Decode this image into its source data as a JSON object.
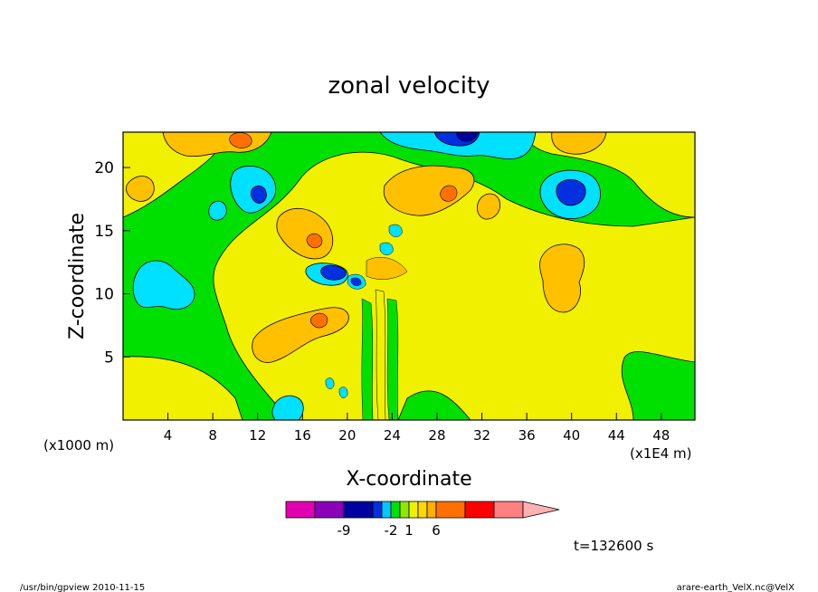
{
  "chart_data": {
    "type": "heatmap",
    "title": "zonal velocity",
    "xlabel": "X-coordinate",
    "ylabel": "Z-coordinate",
    "x_unit_note": "(x1000 m)",
    "x_scale_note": "(x1E4 m)",
    "xlim": [
      0,
      51
    ],
    "ylim": [
      0,
      22.8
    ],
    "x_ticks": [
      "4",
      "8",
      "12",
      "16",
      "20",
      "24",
      "28",
      "32",
      "36",
      "40",
      "44",
      "48"
    ],
    "y_ticks": [
      "5",
      "10",
      "15",
      "20"
    ],
    "colorbar": {
      "labels": [
        "-9",
        "-2",
        "1",
        "6"
      ],
      "colors": [
        "#e000b0",
        "#8a00b8",
        "#0000a0",
        "#0030e0",
        "#00c8ff",
        "#00e000",
        "#90e800",
        "#f0f000",
        "#ffd800",
        "#ffb000",
        "#ff7000",
        "#ff0000",
        "#ff8080",
        "#ffb0b0"
      ]
    },
    "legend_colors": {
      "negative_strong": "#0000a0",
      "negative": "#0030e0",
      "negative_weak": "#00e0ff",
      "neutral": "#00e000",
      "positive_weak": "#f0f000",
      "positive": "#ffc000",
      "positive_strong": "#ff7000"
    },
    "time_label": "t=132600 s",
    "footer_left": "/usr/bin/gpview   2010-11-15",
    "footer_right": "arare-earth_VelX.nc@VelX"
  }
}
